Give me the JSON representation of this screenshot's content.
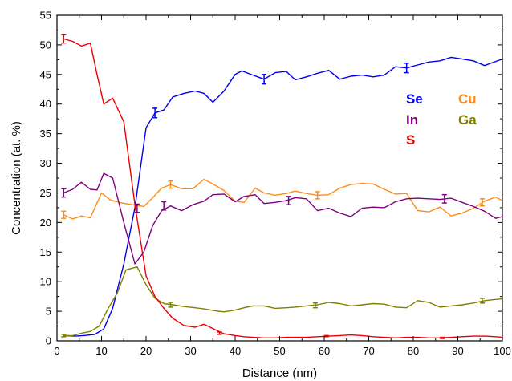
{
  "chart_data": {
    "type": "line",
    "xlabel": "Distance (nm)",
    "ylabel": "Concentration (at. %)",
    "xlim": [
      0,
      100
    ],
    "ylim": [
      0,
      55
    ],
    "xticks": [
      0,
      10,
      20,
      30,
      40,
      50,
      60,
      70,
      80,
      90,
      100
    ],
    "yticks": [
      0,
      5,
      10,
      15,
      20,
      25,
      30,
      35,
      40,
      45,
      50,
      55
    ],
    "grid": false,
    "legend_position": "right, inside plot",
    "series": [
      {
        "name": "Se",
        "color": "#0000ee",
        "x": [
          1.5,
          4,
          6,
          8.5,
          10.5,
          12.5,
          15,
          17.5,
          20,
          22,
          24,
          26,
          28.5,
          31,
          33,
          35,
          37.5,
          40,
          41.5,
          44,
          46.5,
          49,
          51.5,
          53.5,
          56,
          58.5,
          61,
          63.5,
          66,
          68.5,
          71,
          73.5,
          76,
          78.5,
          81,
          83.5,
          86,
          88.5,
          91,
          93.5,
          96,
          98.5,
          100
        ],
        "y": [
          0.9,
          0.8,
          0.9,
          1.1,
          2.0,
          5.5,
          13.0,
          22.5,
          36.0,
          38.5,
          39.0,
          41.2,
          41.8,
          42.2,
          41.8,
          40.3,
          42.2,
          45.0,
          45.6,
          44.9,
          44.2,
          45.3,
          45.5,
          44.1,
          44.6,
          45.2,
          45.7,
          44.2,
          44.7,
          44.9,
          44.6,
          44.9,
          46.3,
          46.1,
          46.6,
          47.1,
          47.3,
          47.9,
          47.6,
          47.3,
          46.5,
          47.2,
          47.6
        ]
      },
      {
        "name": "Cu",
        "color": "#ff8c1a",
        "x": [
          1.5,
          3.5,
          5.5,
          7.5,
          10,
          12,
          14.5,
          17,
          19.5,
          21.5,
          23.5,
          25.5,
          28,
          30.5,
          33,
          35,
          37.5,
          40,
          42,
          44.5,
          46.5,
          49,
          51.5,
          53.5,
          56,
          58.5,
          61,
          63.5,
          66,
          68.5,
          71,
          73.5,
          76,
          78.5,
          81,
          83.5,
          86,
          88.5,
          91,
          93.5,
          96,
          98.5,
          100
        ],
        "y": [
          21.3,
          20.6,
          21.1,
          20.8,
          25.0,
          23.8,
          23.3,
          23.0,
          22.7,
          24.2,
          25.8,
          26.4,
          25.7,
          25.7,
          27.3,
          26.5,
          25.4,
          23.6,
          23.4,
          25.8,
          25.0,
          24.6,
          24.9,
          25.3,
          24.9,
          24.6,
          24.7,
          25.8,
          26.4,
          26.6,
          26.5,
          25.6,
          24.8,
          24.9,
          22.0,
          21.8,
          22.6,
          21.1,
          21.6,
          22.4,
          23.6,
          24.3,
          23.7
        ]
      },
      {
        "name": "In",
        "color": "#800080",
        "x": [
          1.5,
          3.5,
          5.5,
          7.5,
          9,
          10.5,
          12.5,
          15,
          17.5,
          19.5,
          21.5,
          23.5,
          25.5,
          28,
          30.5,
          33,
          35,
          37.5,
          40,
          42,
          44.5,
          46.5,
          49,
          51.5,
          53.5,
          56,
          58.5,
          61,
          63.5,
          66,
          68.5,
          71,
          73.5,
          76,
          78.5,
          81,
          83.5,
          86,
          88.5,
          91,
          93.5,
          96,
          98.5,
          100
        ],
        "y": [
          25.0,
          25.6,
          26.8,
          25.6,
          25.5,
          28.3,
          27.5,
          20.0,
          13.0,
          15.0,
          19.5,
          22.0,
          22.8,
          22.0,
          23.0,
          23.6,
          24.7,
          24.8,
          23.5,
          24.4,
          24.7,
          23.2,
          23.4,
          23.7,
          24.2,
          24.0,
          22.0,
          22.4,
          21.6,
          21.0,
          22.4,
          22.6,
          22.5,
          23.5,
          24.0,
          24.1,
          24.0,
          23.9,
          24.1,
          23.4,
          22.7,
          21.9,
          20.7,
          21.0
        ]
      },
      {
        "name": "Ga",
        "color": "#808000",
        "x": [
          1.5,
          3.5,
          5.5,
          7.5,
          9.5,
          11.5,
          13.5,
          15.5,
          18,
          20,
          22,
          24,
          26,
          28.5,
          31,
          33,
          35.5,
          37.5,
          40,
          42,
          44,
          46.5,
          49,
          51.5,
          53.5,
          56,
          58.5,
          61,
          63.5,
          66,
          68.5,
          71,
          73.5,
          76,
          78.5,
          81,
          83.5,
          86,
          88.5,
          91,
          93.5,
          96,
          98.5,
          100
        ],
        "y": [
          0.9,
          0.9,
          1.3,
          1.6,
          2.5,
          5.5,
          8.0,
          12.0,
          12.5,
          9.5,
          7.2,
          6.3,
          6.1,
          5.8,
          5.6,
          5.4,
          5.1,
          4.9,
          5.2,
          5.6,
          5.9,
          5.9,
          5.5,
          5.6,
          5.7,
          5.9,
          6.1,
          6.5,
          6.3,
          5.9,
          6.1,
          6.3,
          6.2,
          5.7,
          5.6,
          6.8,
          6.5,
          5.7,
          5.9,
          6.1,
          6.4,
          6.8,
          7.0,
          7.1
        ]
      },
      {
        "name": "S",
        "color": "#ee0000",
        "x": [
          1.5,
          3.5,
          5.5,
          7.5,
          9,
          10.5,
          12.5,
          15,
          17.5,
          20,
          22,
          24,
          26,
          28.5,
          31,
          33,
          35.5,
          37.5,
          40,
          42,
          44,
          46.5,
          49,
          51.5,
          53.5,
          56,
          58.5,
          61,
          63.5,
          66,
          68.5,
          71,
          73.5,
          76,
          78.5,
          81,
          83.5,
          86,
          88.5,
          91,
          93.5,
          96,
          98.5,
          100
        ],
        "y": [
          51.0,
          50.6,
          49.8,
          50.3,
          45.0,
          40.0,
          41.0,
          37.0,
          23.0,
          11.0,
          7.5,
          5.5,
          3.8,
          2.6,
          2.3,
          2.8,
          1.9,
          1.2,
          0.9,
          0.7,
          0.6,
          0.5,
          0.5,
          0.6,
          0.6,
          0.6,
          0.7,
          0.8,
          0.9,
          1.0,
          0.9,
          0.7,
          0.6,
          0.5,
          0.6,
          0.6,
          0.5,
          0.5,
          0.6,
          0.7,
          0.8,
          0.8,
          0.7,
          0.6
        ]
      }
    ],
    "error_bars": [
      {
        "series": "Se",
        "x": 22,
        "y": 38.5,
        "err": 0.8
      },
      {
        "series": "Se",
        "x": 46.5,
        "y": 44.2,
        "err": 0.8
      },
      {
        "series": "Se",
        "x": 78.5,
        "y": 46.1,
        "err": 0.8
      },
      {
        "series": "Cu",
        "x": 1.5,
        "y": 21.3,
        "err": 0.6
      },
      {
        "series": "Cu",
        "x": 25.5,
        "y": 26.4,
        "err": 0.6
      },
      {
        "series": "Cu",
        "x": 58.5,
        "y": 24.6,
        "err": 0.6
      },
      {
        "series": "Cu",
        "x": 95.5,
        "y": 23.4,
        "err": 0.6
      },
      {
        "series": "In",
        "x": 1.5,
        "y": 25.0,
        "err": 0.7
      },
      {
        "series": "In",
        "x": 18,
        "y": 22.4,
        "err": 0.7
      },
      {
        "series": "In",
        "x": 24,
        "y": 22.8,
        "err": 0.7
      },
      {
        "series": "In",
        "x": 52,
        "y": 23.7,
        "err": 0.7
      },
      {
        "series": "In",
        "x": 87,
        "y": 24.0,
        "err": 0.7
      },
      {
        "series": "Ga",
        "x": 1.5,
        "y": 0.9,
        "err": 0.2
      },
      {
        "series": "Ga",
        "x": 25.5,
        "y": 6.1,
        "err": 0.4
      },
      {
        "series": "Ga",
        "x": 58,
        "y": 6.0,
        "err": 0.4
      },
      {
        "series": "Ga",
        "x": 95.5,
        "y": 6.8,
        "err": 0.4
      },
      {
        "series": "S",
        "x": 1.5,
        "y": 51.0,
        "err": 0.7
      },
      {
        "series": "S",
        "x": 36.5,
        "y": 1.3,
        "err": 0.2
      },
      {
        "series": "S",
        "x": 60.5,
        "y": 0.8,
        "err": 0.1
      },
      {
        "series": "S",
        "x": 86.5,
        "y": 0.5,
        "err": 0.1
      }
    ]
  }
}
